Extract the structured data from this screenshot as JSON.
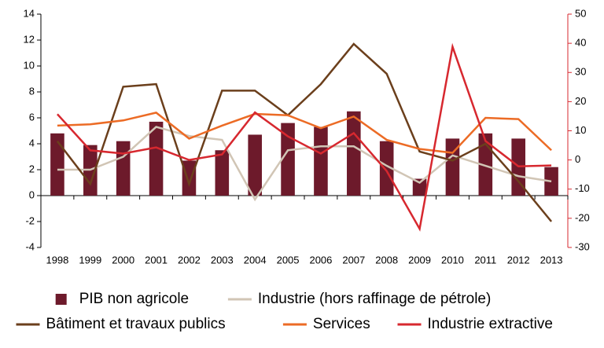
{
  "chart_data": {
    "type": "bar-line",
    "categories": [
      "1998",
      "1999",
      "2000",
      "2001",
      "2002",
      "2003",
      "2004",
      "2005",
      "2006",
      "2007",
      "2008",
      "2009",
      "2010",
      "2011",
      "2012",
      "2013"
    ],
    "series": [
      {
        "name": "PIB non agricole",
        "type": "bar",
        "color": "#6d1a2b",
        "values": [
          4.8,
          3.9,
          4.2,
          5.7,
          2.7,
          3.5,
          4.7,
          5.6,
          5.3,
          6.5,
          4.2,
          1.3,
          4.4,
          4.8,
          4.4,
          2.2
        ]
      },
      {
        "name": "Industrie (hors raffinage de pétrole)",
        "type": "line",
        "color": "#d1c5b5",
        "values": [
          2.0,
          2.0,
          3.0,
          5.3,
          4.6,
          4.3,
          -0.3,
          3.5,
          3.8,
          3.8,
          2.3,
          1.0,
          3.1,
          2.3,
          1.5,
          1.1
        ]
      },
      {
        "name": "Bâtiment et travaux publics",
        "type": "line",
        "color": "#6b3f1c",
        "values": [
          4.2,
          0.9,
          8.4,
          8.6,
          0.9,
          8.1,
          8.1,
          6.2,
          8.6,
          11.7,
          9.4,
          3.4,
          2.7,
          4.0,
          1.1,
          -2.0
        ]
      },
      {
        "name": "Services",
        "type": "line",
        "color": "#ec6b25",
        "values": [
          5.4,
          5.5,
          5.8,
          6.4,
          4.4,
          5.4,
          6.3,
          6.2,
          5.2,
          6.1,
          4.3,
          3.6,
          3.3,
          6.0,
          5.9,
          3.5
        ]
      },
      {
        "name": "Industrie extractive",
        "type": "line",
        "axis": "y2",
        "color": "#d7282f",
        "values": [
          15.7,
          3.3,
          2.2,
          4.3,
          0,
          1.9,
          16.3,
          8.1,
          2.2,
          9.2,
          -3.8,
          -23.6,
          38.8,
          6.5,
          -2.2,
          -1.9
        ]
      }
    ],
    "ylim": [
      -4,
      14
    ],
    "yticks": [
      -4,
      -2,
      0,
      2,
      4,
      6,
      8,
      10,
      12,
      14
    ],
    "y2lim": [
      -30,
      50
    ],
    "y2ticks": [
      -30,
      -20,
      -10,
      0,
      10,
      20,
      30,
      40,
      50
    ],
    "y2color": "#d7282f"
  }
}
